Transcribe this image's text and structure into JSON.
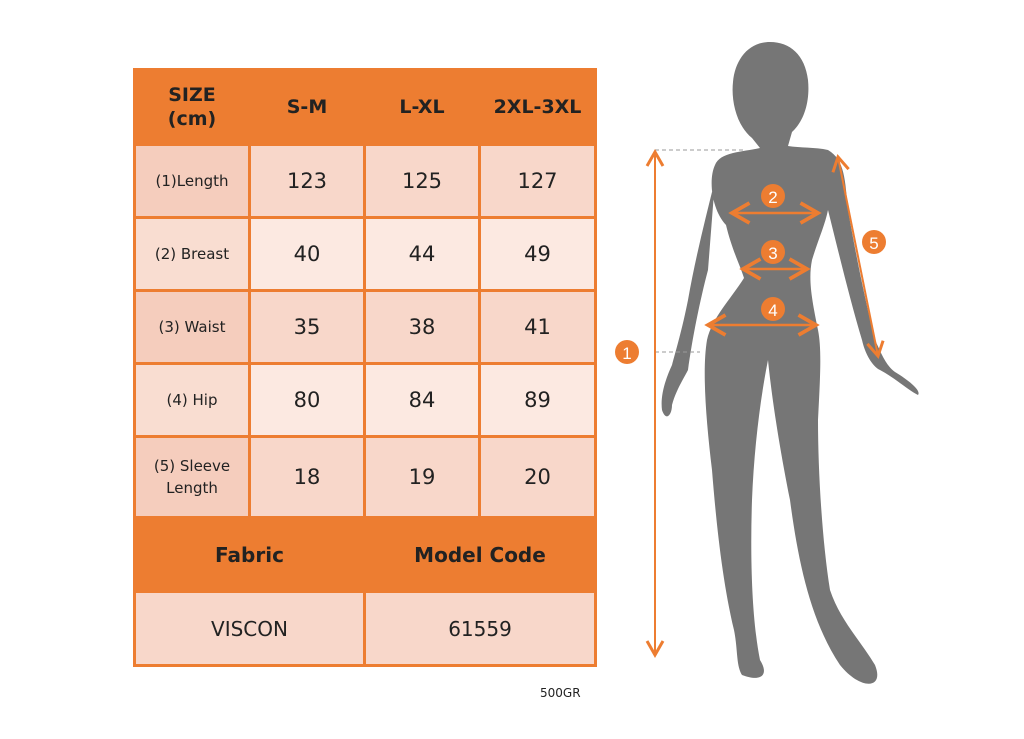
{
  "table": {
    "header": [
      "SIZE\n(cm)",
      "S-M",
      "L-XL",
      "2XL-3XL"
    ],
    "header_label_line1": "SIZE",
    "header_label_line2": "(cm)",
    "rows": [
      {
        "label": "(1)Length",
        "values": [
          "123",
          "125",
          "127"
        ]
      },
      {
        "label": "(2) Breast",
        "values": [
          "40",
          "44",
          "49"
        ]
      },
      {
        "label": "(3) Waist",
        "values": [
          "35",
          "38",
          "41"
        ]
      },
      {
        "label": "(4) Hip",
        "values": [
          "80",
          "84",
          "89"
        ]
      },
      {
        "label_line1": "(5) Sleeve",
        "label_line2": "Length",
        "values": [
          "18",
          "19",
          "20"
        ]
      }
    ],
    "fabric_header": "Fabric",
    "model_code_header": "Model Code",
    "fabric_value": "VISCON",
    "model_code_value": "61559"
  },
  "weight_note": "500GR",
  "figure": {
    "markers": [
      "1",
      "2",
      "3",
      "4",
      "5"
    ]
  },
  "colors": {
    "accent": "#ed7d31",
    "silhouette": "#767676",
    "row_dark": "#f8d7ca",
    "row_light": "#fce9e1"
  }
}
